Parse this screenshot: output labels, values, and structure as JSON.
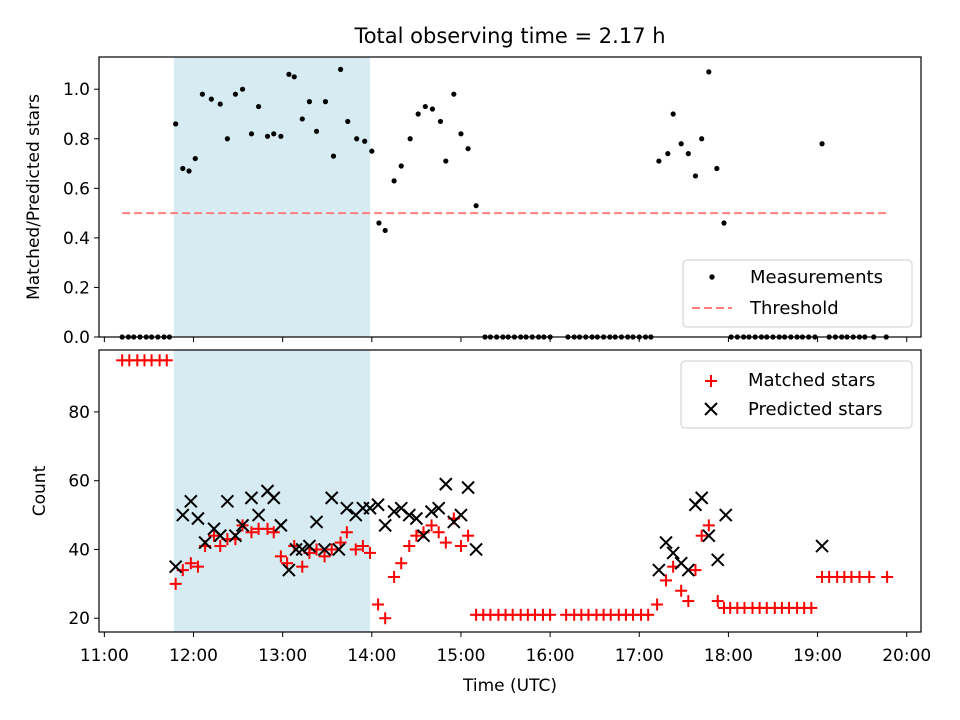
{
  "chart_data": [
    {
      "type": "scatter",
      "title": "Total observing time = 2.17 h",
      "ylabel": "Matched/Predicted stars",
      "xlim": [
        10.94,
        20.16
      ],
      "ylim": [
        0,
        1.13
      ],
      "yticks": [
        "0.0",
        "0.2",
        "0.4",
        "0.6",
        "0.8",
        "1.0"
      ],
      "grid": false,
      "legend_position": "lower-right",
      "highlight_span": {
        "x0": 11.78,
        "x1": 13.98,
        "color": "#add8e6"
      },
      "series": [
        {
          "name": "Measurements",
          "color": "#000000",
          "marker": "dot",
          "points": [
            [
              11.2,
              0
            ],
            [
              11.27,
              0
            ],
            [
              11.33,
              0
            ],
            [
              11.4,
              0
            ],
            [
              11.47,
              0
            ],
            [
              11.53,
              0
            ],
            [
              11.6,
              0
            ],
            [
              11.67,
              0
            ],
            [
              11.73,
              0
            ],
            [
              11.8,
              0.86
            ],
            [
              11.88,
              0.68
            ],
            [
              11.95,
              0.67
            ],
            [
              12.02,
              0.72
            ],
            [
              12.1,
              0.98
            ],
            [
              12.2,
              0.96
            ],
            [
              12.3,
              0.94
            ],
            [
              12.38,
              0.8
            ],
            [
              12.47,
              0.98
            ],
            [
              12.55,
              1.0
            ],
            [
              12.65,
              0.82
            ],
            [
              12.73,
              0.93
            ],
            [
              12.83,
              0.81
            ],
            [
              12.9,
              0.82
            ],
            [
              12.98,
              0.81
            ],
            [
              13.07,
              1.06
            ],
            [
              13.13,
              1.05
            ],
            [
              13.22,
              0.88
            ],
            [
              13.3,
              0.95
            ],
            [
              13.38,
              0.83
            ],
            [
              13.48,
              0.95
            ],
            [
              13.57,
              0.73
            ],
            [
              13.65,
              1.08
            ],
            [
              13.73,
              0.87
            ],
            [
              13.83,
              0.8
            ],
            [
              13.92,
              0.79
            ],
            [
              14.0,
              0.75
            ],
            [
              14.08,
              0.46
            ],
            [
              14.15,
              0.43
            ],
            [
              14.25,
              0.63
            ],
            [
              14.33,
              0.69
            ],
            [
              14.43,
              0.8
            ],
            [
              14.52,
              0.9
            ],
            [
              14.6,
              0.93
            ],
            [
              14.68,
              0.92
            ],
            [
              14.77,
              0.87
            ],
            [
              14.83,
              0.71
            ],
            [
              14.92,
              0.98
            ],
            [
              15.0,
              0.82
            ],
            [
              15.08,
              0.76
            ],
            [
              15.17,
              0.53
            ],
            [
              15.27,
              0
            ],
            [
              15.33,
              0
            ],
            [
              15.4,
              0
            ],
            [
              15.47,
              0
            ],
            [
              15.53,
              0
            ],
            [
              15.6,
              0
            ],
            [
              15.67,
              0
            ],
            [
              15.73,
              0
            ],
            [
              15.8,
              0
            ],
            [
              15.87,
              0
            ],
            [
              15.93,
              0
            ],
            [
              16.0,
              0
            ],
            [
              16.2,
              0
            ],
            [
              16.27,
              0
            ],
            [
              16.33,
              0
            ],
            [
              16.4,
              0
            ],
            [
              16.47,
              0
            ],
            [
              16.53,
              0
            ],
            [
              16.6,
              0
            ],
            [
              16.67,
              0
            ],
            [
              16.73,
              0
            ],
            [
              16.8,
              0
            ],
            [
              16.87,
              0
            ],
            [
              16.93,
              0
            ],
            [
              17.0,
              0
            ],
            [
              17.07,
              0
            ],
            [
              17.13,
              0
            ],
            [
              17.22,
              0.71
            ],
            [
              17.32,
              0.74
            ],
            [
              17.38,
              0.9
            ],
            [
              17.47,
              0.78
            ],
            [
              17.55,
              0.74
            ],
            [
              17.63,
              0.65
            ],
            [
              17.7,
              0.8
            ],
            [
              17.78,
              1.07
            ],
            [
              17.87,
              0.68
            ],
            [
              17.95,
              0.46
            ],
            [
              18.03,
              0
            ],
            [
              18.1,
              0
            ],
            [
              18.17,
              0
            ],
            [
              18.23,
              0
            ],
            [
              18.3,
              0
            ],
            [
              18.37,
              0
            ],
            [
              18.43,
              0
            ],
            [
              18.5,
              0
            ],
            [
              18.57,
              0
            ],
            [
              18.63,
              0
            ],
            [
              18.7,
              0
            ],
            [
              18.77,
              0
            ],
            [
              18.83,
              0
            ],
            [
              18.9,
              0
            ],
            [
              18.97,
              0
            ],
            [
              19.05,
              0.78
            ],
            [
              19.13,
              0
            ],
            [
              19.2,
              0
            ],
            [
              19.27,
              0
            ],
            [
              19.33,
              0
            ],
            [
              19.4,
              0
            ],
            [
              19.47,
              0
            ],
            [
              19.53,
              0
            ],
            [
              19.63,
              0
            ],
            [
              19.77,
              0
            ]
          ]
        },
        {
          "name": "Threshold",
          "color": "#ff7f7f",
          "style": "dashed",
          "points": [
            [
              11.2,
              0.5
            ],
            [
              19.77,
              0.5
            ]
          ]
        }
      ]
    },
    {
      "type": "scatter",
      "xlabel": "Time (UTC)",
      "ylabel": "Count",
      "xlim": [
        10.94,
        20.16
      ],
      "ylim": [
        16,
        98
      ],
      "xtick_values": [
        11,
        12,
        13,
        14,
        15,
        16,
        17,
        18,
        19,
        20
      ],
      "xticks": [
        "11:00",
        "12:00",
        "13:00",
        "14:00",
        "15:00",
        "16:00",
        "17:00",
        "18:00",
        "19:00",
        "20:00"
      ],
      "yticks": [
        "20",
        "40",
        "60",
        "80"
      ],
      "grid": false,
      "legend_position": "upper-right",
      "highlight_span": {
        "x0": 11.78,
        "x1": 13.98,
        "color": "#add8e6"
      },
      "series": [
        {
          "name": "Matched stars",
          "color": "#ff0000",
          "marker": "plus",
          "points": [
            [
              11.2,
              95
            ],
            [
              11.28,
              95
            ],
            [
              11.37,
              95
            ],
            [
              11.45,
              95
            ],
            [
              11.53,
              95
            ],
            [
              11.62,
              95
            ],
            [
              11.7,
              95
            ],
            [
              11.8,
              30
            ],
            [
              11.88,
              34
            ],
            [
              11.97,
              36
            ],
            [
              12.05,
              35
            ],
            [
              12.13,
              41
            ],
            [
              12.23,
              44
            ],
            [
              12.3,
              41
            ],
            [
              12.38,
              43
            ],
            [
              12.47,
              43
            ],
            [
              12.55,
              47
            ],
            [
              12.65,
              45
            ],
            [
              12.73,
              46
            ],
            [
              12.83,
              46
            ],
            [
              12.9,
              45
            ],
            [
              12.98,
              38
            ],
            [
              13.05,
              36
            ],
            [
              13.13,
              41
            ],
            [
              13.22,
              35
            ],
            [
              13.3,
              39
            ],
            [
              13.38,
              40
            ],
            [
              13.47,
              38
            ],
            [
              13.55,
              40
            ],
            [
              13.65,
              42
            ],
            [
              13.72,
              45
            ],
            [
              13.82,
              40
            ],
            [
              13.9,
              41
            ],
            [
              13.98,
              39
            ],
            [
              14.07,
              24
            ],
            [
              14.15,
              20
            ],
            [
              14.25,
              32
            ],
            [
              14.33,
              36
            ],
            [
              14.42,
              41
            ],
            [
              14.5,
              44
            ],
            [
              14.58,
              45
            ],
            [
              14.67,
              47
            ],
            [
              14.75,
              45
            ],
            [
              14.83,
              42
            ],
            [
              14.92,
              49
            ],
            [
              15.0,
              41
            ],
            [
              15.08,
              44
            ],
            [
              15.17,
              21
            ],
            [
              15.25,
              21
            ],
            [
              15.33,
              21
            ],
            [
              15.42,
              21
            ],
            [
              15.5,
              21
            ],
            [
              15.58,
              21
            ],
            [
              15.67,
              21
            ],
            [
              15.75,
              21
            ],
            [
              15.83,
              21
            ],
            [
              15.92,
              21
            ],
            [
              16.0,
              21
            ],
            [
              16.18,
              21
            ],
            [
              16.27,
              21
            ],
            [
              16.35,
              21
            ],
            [
              16.43,
              21
            ],
            [
              16.52,
              21
            ],
            [
              16.6,
              21
            ],
            [
              16.68,
              21
            ],
            [
              16.77,
              21
            ],
            [
              16.85,
              21
            ],
            [
              16.93,
              21
            ],
            [
              17.02,
              21
            ],
            [
              17.1,
              21
            ],
            [
              17.2,
              24
            ],
            [
              17.3,
              31
            ],
            [
              17.38,
              35
            ],
            [
              17.47,
              28
            ],
            [
              17.55,
              25
            ],
            [
              17.63,
              34
            ],
            [
              17.7,
              44
            ],
            [
              17.78,
              47
            ],
            [
              17.88,
              25
            ],
            [
              17.95,
              23
            ],
            [
              18.02,
              23
            ],
            [
              18.1,
              23
            ],
            [
              18.18,
              23
            ],
            [
              18.27,
              23
            ],
            [
              18.35,
              23
            ],
            [
              18.43,
              23
            ],
            [
              18.52,
              23
            ],
            [
              18.6,
              23
            ],
            [
              18.68,
              23
            ],
            [
              18.77,
              23
            ],
            [
              18.85,
              23
            ],
            [
              18.93,
              23
            ],
            [
              19.05,
              32
            ],
            [
              19.13,
              32
            ],
            [
              19.22,
              32
            ],
            [
              19.3,
              32
            ],
            [
              19.38,
              32
            ],
            [
              19.47,
              32
            ],
            [
              19.58,
              32
            ],
            [
              19.78,
              32
            ]
          ]
        },
        {
          "name": "Predicted stars",
          "color": "#000000",
          "marker": "x",
          "points": [
            [
              11.8,
              35
            ],
            [
              11.88,
              50
            ],
            [
              11.97,
              54
            ],
            [
              12.05,
              49
            ],
            [
              12.13,
              42
            ],
            [
              12.23,
              46
            ],
            [
              12.3,
              44
            ],
            [
              12.38,
              54
            ],
            [
              12.47,
              44
            ],
            [
              12.55,
              47
            ],
            [
              12.65,
              55
            ],
            [
              12.73,
              50
            ],
            [
              12.83,
              57
            ],
            [
              12.9,
              55
            ],
            [
              12.98,
              47
            ],
            [
              13.07,
              34
            ],
            [
              13.15,
              40
            ],
            [
              13.22,
              40
            ],
            [
              13.3,
              41
            ],
            [
              13.38,
              48
            ],
            [
              13.47,
              40
            ],
            [
              13.55,
              55
            ],
            [
              13.63,
              40
            ],
            [
              13.72,
              52
            ],
            [
              13.82,
              50
            ],
            [
              13.9,
              52
            ],
            [
              13.98,
              52
            ],
            [
              14.07,
              53
            ],
            [
              14.15,
              47
            ],
            [
              14.25,
              51
            ],
            [
              14.33,
              52
            ],
            [
              14.42,
              50
            ],
            [
              14.5,
              49
            ],
            [
              14.58,
              44
            ],
            [
              14.67,
              51
            ],
            [
              14.75,
              52
            ],
            [
              14.83,
              59
            ],
            [
              14.92,
              48
            ],
            [
              15.0,
              50
            ],
            [
              15.08,
              58
            ],
            [
              15.17,
              40
            ],
            [
              17.22,
              34
            ],
            [
              17.3,
              42
            ],
            [
              17.38,
              39
            ],
            [
              17.47,
              36
            ],
            [
              17.55,
              34
            ],
            [
              17.63,
              53
            ],
            [
              17.7,
              55
            ],
            [
              17.78,
              44
            ],
            [
              17.88,
              37
            ],
            [
              17.97,
              50
            ],
            [
              19.05,
              41
            ]
          ]
        }
      ]
    }
  ]
}
